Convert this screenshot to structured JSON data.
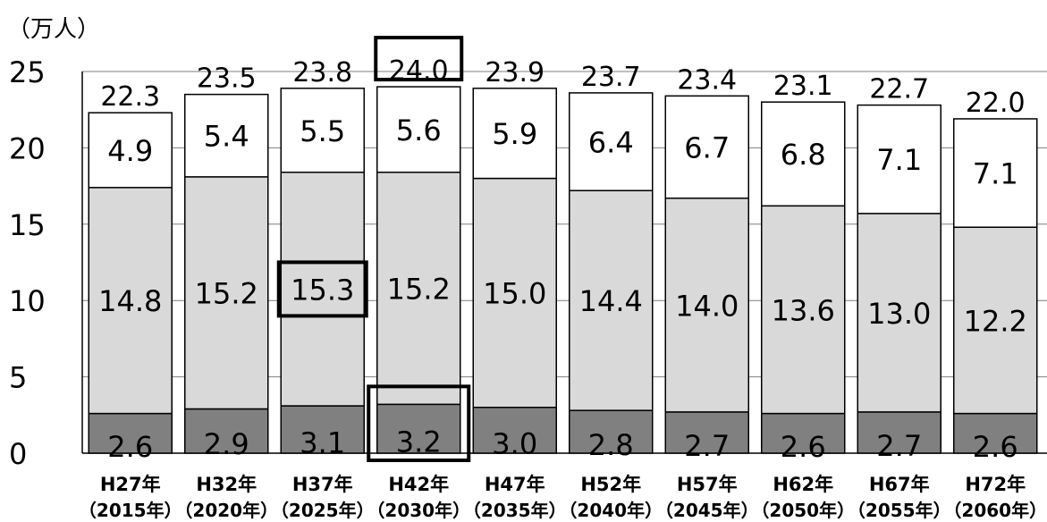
{
  "chart_data": {
    "type": "bar",
    "stacked": true,
    "unit_label": "（万人）",
    "categories": [
      [
        "H27年",
        "（2015年）"
      ],
      [
        "H32年",
        "（2020年）"
      ],
      [
        "H37年",
        "（2025年）"
      ],
      [
        "H42年",
        "（2030年）"
      ],
      [
        "H47年",
        "（2035年）"
      ],
      [
        "H52年",
        "（2040年）"
      ],
      [
        "H57年",
        "（2045年）"
      ],
      [
        "H62年",
        "（2050年）"
      ],
      [
        "H67年",
        "（2055年）"
      ],
      [
        "H72年",
        "（2060年）"
      ]
    ],
    "series": [
      {
        "values": [
          2.6,
          2.9,
          3.1,
          3.2,
          3.0,
          2.8,
          2.7,
          2.6,
          2.7,
          2.6
        ],
        "color": "#808080"
      },
      {
        "values": [
          14.8,
          15.2,
          15.3,
          15.2,
          15.0,
          14.4,
          14.0,
          13.6,
          13.0,
          12.2
        ],
        "color": "#d9d9d9"
      },
      {
        "values": [
          4.9,
          5.4,
          5.5,
          5.6,
          5.9,
          6.4,
          6.7,
          6.8,
          7.1,
          7.1
        ],
        "color": "#ffffff"
      }
    ],
    "totals": [
      22.3,
      23.5,
      23.8,
      24.0,
      23.9,
      23.7,
      23.4,
      23.1,
      22.7,
      22.0
    ],
    "ylim": [
      0,
      25
    ],
    "yticks": [
      0,
      5,
      10,
      15,
      20,
      25
    ],
    "grid": true,
    "highlighted": [
      {
        "category_index": 3,
        "series": "total"
      },
      {
        "category_index": 2,
        "series_index": 1
      },
      {
        "category_index": 3,
        "series_index": 0
      }
    ]
  }
}
